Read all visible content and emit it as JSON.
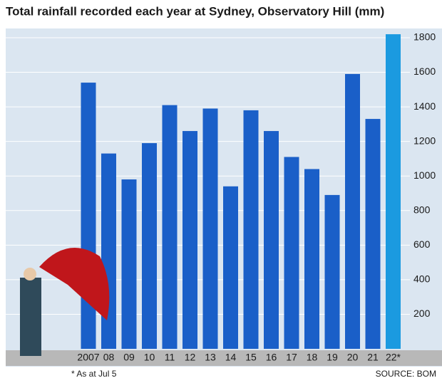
{
  "chart_data": {
    "type": "bar",
    "title": "Total rainfall recorded each year at Sydney, Observatory Hill (mm)",
    "categories": [
      "2007",
      "08",
      "09",
      "10",
      "11",
      "12",
      "13",
      "14",
      "15",
      "16",
      "17",
      "18",
      "19",
      "20",
      "21",
      "22*"
    ],
    "values": [
      1540,
      1130,
      980,
      1190,
      1410,
      1260,
      1390,
      940,
      1380,
      1260,
      1110,
      1040,
      890,
      1590,
      1330,
      1820
    ],
    "color": "#1a5fc8",
    "highlight_color": "#1b9ae0",
    "ylim": [
      0,
      1850
    ],
    "yticks": [
      200,
      400,
      600,
      800,
      1000,
      1200,
      1400,
      1600,
      1800
    ],
    "grid": true,
    "footnote": "* As at Jul 5",
    "source": "SOURCE: BOM"
  }
}
